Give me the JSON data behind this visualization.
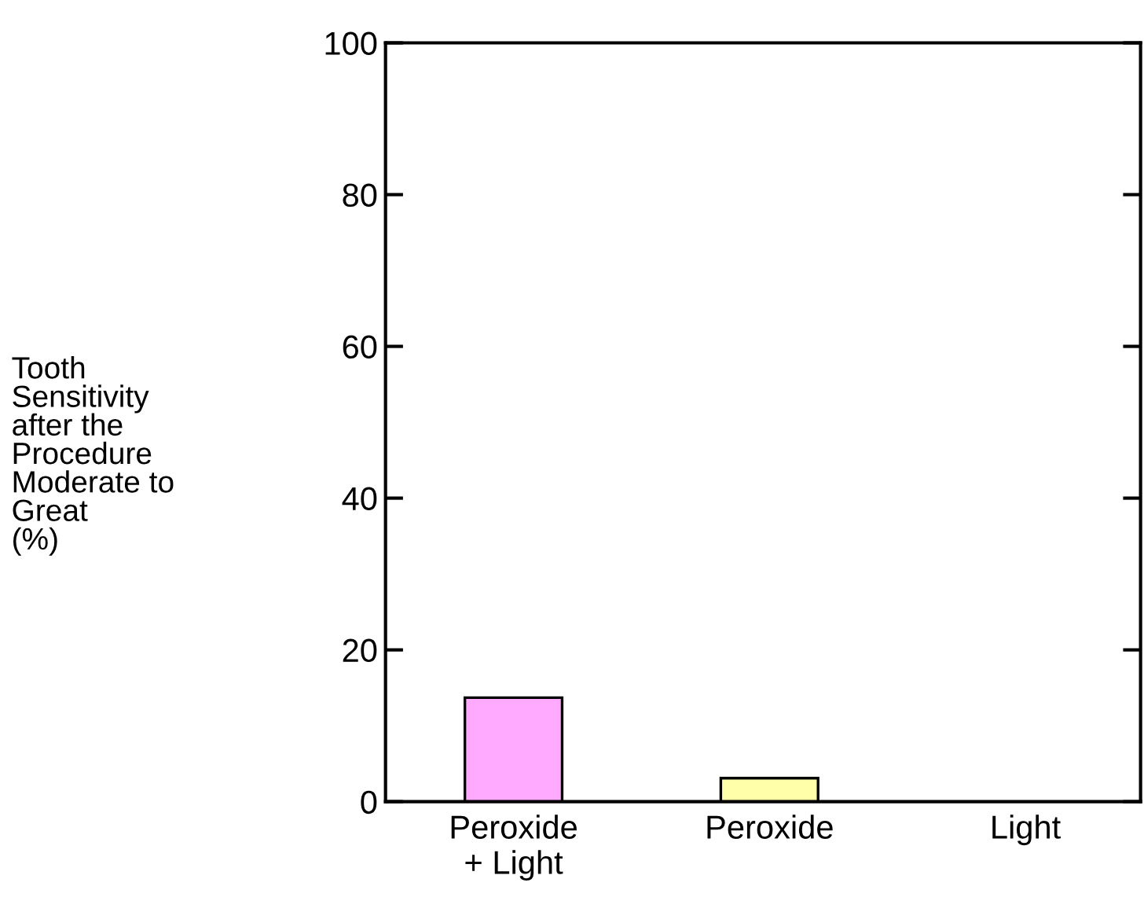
{
  "chart_data": {
    "type": "bar",
    "ylabel": "Tooth\nSensitivity\nafter the\nProcedure\nModerate to\nGreat\n(%)",
    "categories": [
      "Peroxide\n+ Light",
      "Peroxide",
      "Light"
    ],
    "values": [
      13.7,
      3.1,
      0
    ],
    "colors": [
      "#ffaaff",
      "#ffffaa",
      null
    ],
    "ylim": [
      0,
      100
    ],
    "yticks": [
      0,
      20,
      40,
      60,
      80,
      100
    ],
    "grid": false
  }
}
